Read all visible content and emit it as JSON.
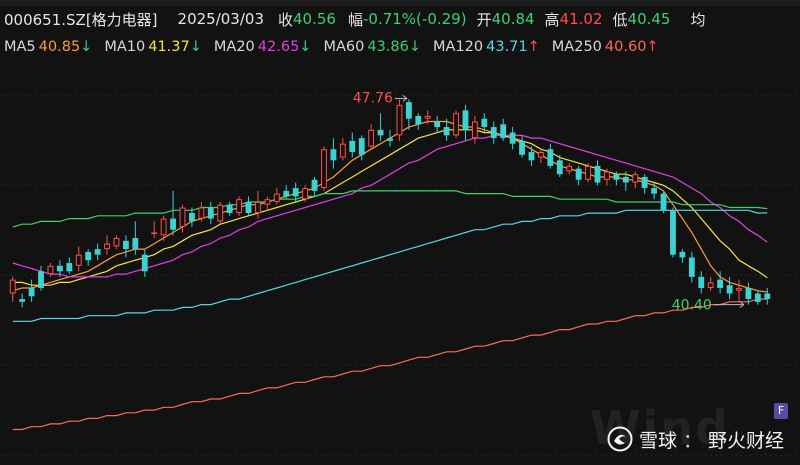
{
  "header": {
    "code": "000651.SZ[格力电器]",
    "date": "2025/03/03",
    "close_label": "收",
    "close_value": "40.56",
    "change_label": "幅",
    "change_value": "-0.71%(-0.29)",
    "open_label": "开",
    "open_value": "40.84",
    "high_label": "高",
    "high_value": "41.02",
    "low_label": "低",
    "low_value": "40.45",
    "avg_label": "均"
  },
  "ma_legend": [
    {
      "label": "MA5",
      "value": "40.85",
      "arrow": "↓",
      "color": "#ff9a3c"
    },
    {
      "label": "MA10",
      "value": "41.37",
      "arrow": "↓",
      "color": "#f5e14a"
    },
    {
      "label": "MA20",
      "value": "42.65",
      "arrow": "↓",
      "color": "#e040e0"
    },
    {
      "label": "MA60",
      "value": "43.86",
      "arrow": "↓",
      "color": "#3fd06d"
    },
    {
      "label": "MA120",
      "value": "43.71",
      "arrow": "↑",
      "color": "#5ad7e6"
    },
    {
      "label": "MA250",
      "value": "40.60",
      "arrow": "↑",
      "color": "#ff6a5a"
    }
  ],
  "colors": {
    "up": "#ff4d4d",
    "down": "#3fd0d0",
    "grid": "#262626"
  },
  "chart_data": {
    "type": "candlestick",
    "ylim": [
      34.8,
      49.0
    ],
    "annotations": [
      {
        "label": "47.76",
        "index": 42,
        "value": 47.76,
        "kind": "high",
        "color": "#ff4d4d"
      },
      {
        "label": "40.40",
        "index": 79,
        "value": 40.4,
        "kind": "low",
        "color": "#3fd06d"
      }
    ],
    "candles": [
      [
        40.8,
        41.3,
        40.5,
        41.4
      ],
      [
        40.6,
        40.5,
        40.3,
        40.8
      ],
      [
        41.0,
        40.7,
        40.5,
        41.3
      ],
      [
        41.6,
        41.0,
        40.9,
        41.8
      ],
      [
        41.5,
        41.8,
        41.4,
        41.9
      ],
      [
        41.8,
        41.6,
        41.4,
        42.0
      ],
      [
        41.9,
        41.6,
        41.5,
        42.1
      ],
      [
        41.8,
        42.2,
        41.6,
        42.5
      ],
      [
        42.3,
        42.0,
        41.8,
        42.4
      ],
      [
        42.4,
        42.2,
        42.0,
        42.6
      ],
      [
        42.4,
        42.6,
        42.2,
        42.9
      ],
      [
        42.5,
        42.8,
        42.4,
        42.9
      ],
      [
        42.7,
        42.4,
        42.1,
        42.9
      ],
      [
        42.8,
        42.4,
        42.2,
        43.4
      ],
      [
        42.2,
        41.6,
        41.4,
        42.4
      ],
      [
        43.0,
        43.0,
        42.8,
        43.4
      ],
      [
        42.9,
        43.5,
        42.7,
        43.6
      ],
      [
        43.5,
        43.1,
        42.9,
        44.5
      ],
      [
        43.2,
        43.9,
        43.0,
        44.0
      ],
      [
        43.7,
        43.4,
        43.2,
        43.9
      ],
      [
        43.5,
        43.9,
        43.4,
        44.1
      ],
      [
        43.9,
        43.5,
        43.3,
        44.1
      ],
      [
        43.4,
        44.0,
        43.3,
        44.1
      ],
      [
        44.0,
        43.7,
        43.6,
        44.1
      ],
      [
        43.7,
        44.2,
        43.6,
        44.3
      ],
      [
        44.1,
        43.7,
        43.6,
        44.3
      ],
      [
        43.7,
        44.1,
        43.5,
        44.5
      ],
      [
        44.0,
        44.2,
        43.8,
        44.3
      ],
      [
        44.1,
        44.4,
        44.0,
        44.6
      ],
      [
        44.5,
        44.3,
        44.2,
        44.7
      ],
      [
        44.6,
        44.3,
        44.1,
        44.8
      ],
      [
        44.2,
        44.6,
        44.1,
        44.7
      ],
      [
        44.9,
        44.5,
        44.3,
        45.0
      ],
      [
        44.6,
        46.0,
        44.5,
        46.1
      ],
      [
        46.0,
        45.6,
        45.3,
        46.4
      ],
      [
        45.7,
        46.2,
        45.6,
        46.4
      ],
      [
        46.3,
        45.9,
        45.7,
        46.6
      ],
      [
        46.4,
        45.8,
        45.6,
        46.5
      ],
      [
        46.1,
        46.7,
        46.0,
        46.9
      ],
      [
        46.7,
        46.5,
        46.3,
        47.3
      ],
      [
        46.4,
        46.3,
        46.1,
        46.7
      ],
      [
        46.5,
        47.6,
        46.3,
        47.8
      ],
      [
        47.7,
        47.1,
        46.7,
        47.8
      ],
      [
        47.2,
        46.9,
        46.7,
        47.3
      ],
      [
        47.1,
        47.2,
        46.9,
        47.4
      ],
      [
        47.0,
        46.8,
        46.6,
        47.2
      ],
      [
        46.8,
        46.5,
        46.3,
        47.1
      ],
      [
        46.5,
        47.3,
        46.4,
        47.4
      ],
      [
        47.4,
        46.7,
        46.3,
        47.6
      ],
      [
        46.4,
        47.0,
        46.2,
        47.2
      ],
      [
        47.1,
        46.8,
        46.6,
        47.3
      ],
      [
        46.8,
        46.4,
        46.2,
        47.0
      ],
      [
        46.9,
        46.4,
        46.3,
        47.1
      ],
      [
        46.6,
        46.2,
        46.0,
        46.8
      ],
      [
        46.3,
        45.8,
        45.7,
        46.5
      ],
      [
        45.9,
        45.6,
        45.4,
        46.1
      ],
      [
        45.7,
        45.9,
        45.5,
        46.0
      ],
      [
        46.0,
        45.4,
        45.3,
        46.2
      ],
      [
        45.6,
        45.1,
        45.0,
        45.8
      ],
      [
        45.2,
        45.4,
        45.1,
        45.5
      ],
      [
        45.3,
        44.9,
        44.7,
        45.4
      ],
      [
        44.9,
        45.4,
        44.8,
        45.5
      ],
      [
        45.4,
        44.8,
        44.7,
        45.6
      ],
      [
        44.9,
        45.2,
        44.7,
        45.3
      ],
      [
        45.1,
        44.9,
        44.7,
        45.2
      ],
      [
        45.0,
        44.8,
        44.5,
        45.2
      ],
      [
        44.8,
        45.1,
        44.6,
        45.2
      ],
      [
        45.0,
        44.6,
        44.4,
        45.1
      ],
      [
        44.6,
        44.4,
        44.2,
        44.8
      ],
      [
        44.4,
        43.8,
        43.7,
        44.5
      ],
      [
        43.8,
        42.2,
        42.1,
        43.9
      ],
      [
        42.3,
        42.1,
        41.9,
        42.4
      ],
      [
        42.1,
        41.4,
        41.2,
        42.3
      ],
      [
        41.4,
        41.0,
        40.8,
        41.6
      ],
      [
        41.0,
        41.2,
        40.9,
        41.4
      ],
      [
        41.3,
        41.0,
        40.8,
        41.6
      ],
      [
        41.1,
        40.8,
        40.6,
        41.4
      ],
      [
        40.9,
        41.0,
        40.5,
        41.3
      ],
      [
        41.0,
        40.6,
        40.4,
        41.2
      ],
      [
        40.8,
        40.5,
        40.4,
        40.9
      ],
      [
        40.8,
        40.6,
        40.4,
        41.0
      ]
    ],
    "ma_lines": {
      "MA5": [
        40.9,
        41.0,
        41.0,
        41.1,
        41.2,
        41.3,
        41.4,
        41.5,
        41.6,
        41.8,
        42.0,
        42.2,
        42.3,
        42.4,
        42.4,
        42.6,
        42.8,
        43.0,
        43.2,
        43.4,
        43.5,
        43.6,
        43.7,
        43.8,
        43.9,
        44.0,
        44.0,
        44.1,
        44.2,
        44.3,
        44.4,
        44.5,
        44.6,
        44.8,
        45.0,
        45.3,
        45.6,
        45.8,
        46.0,
        46.2,
        46.4,
        46.6,
        46.8,
        46.9,
        47.0,
        47.0,
        47.0,
        46.9,
        46.8,
        46.8,
        46.7,
        46.6,
        46.5,
        46.4,
        46.2,
        46.0,
        45.8,
        45.6,
        45.4,
        45.3,
        45.2,
        45.1,
        45.0,
        45.0,
        45.0,
        44.9,
        44.9,
        44.8,
        44.7,
        44.5,
        44.0,
        43.5,
        43.0,
        42.4,
        41.8,
        41.4,
        41.2,
        41.1,
        41.0,
        40.9,
        40.85
      ],
      "MA10": [
        41.2,
        41.2,
        41.1,
        41.1,
        41.1,
        41.2,
        41.2,
        41.3,
        41.4,
        41.5,
        41.6,
        41.8,
        41.9,
        42.0,
        42.1,
        42.2,
        42.4,
        42.5,
        42.7,
        42.9,
        43.0,
        43.1,
        43.3,
        43.4,
        43.5,
        43.6,
        43.7,
        43.8,
        43.9,
        44.0,
        44.1,
        44.2,
        44.3,
        44.4,
        44.6,
        44.8,
        45.0,
        45.2,
        45.4,
        45.6,
        45.8,
        46.0,
        46.2,
        46.4,
        46.5,
        46.6,
        46.7,
        46.7,
        46.7,
        46.7,
        46.6,
        46.6,
        46.5,
        46.4,
        46.3,
        46.2,
        46.0,
        45.9,
        45.7,
        45.6,
        45.5,
        45.4,
        45.3,
        45.2,
        45.1,
        45.1,
        45.0,
        44.9,
        44.8,
        44.7,
        44.5,
        44.2,
        43.9,
        43.5,
        43.1,
        42.7,
        42.4,
        42.0,
        41.8,
        41.6,
        41.37
      ],
      "MA20": [
        41.9,
        41.8,
        41.7,
        41.6,
        41.5,
        41.5,
        41.4,
        41.4,
        41.4,
        41.4,
        41.4,
        41.5,
        41.5,
        41.6,
        41.7,
        41.8,
        41.9,
        42.0,
        42.2,
        42.3,
        42.5,
        42.6,
        42.8,
        42.9,
        43.1,
        43.2,
        43.4,
        43.5,
        43.6,
        43.7,
        43.8,
        43.9,
        44.0,
        44.1,
        44.2,
        44.3,
        44.4,
        44.6,
        44.7,
        44.9,
        45.1,
        45.3,
        45.5,
        45.6,
        45.8,
        46.0,
        46.1,
        46.2,
        46.3,
        46.4,
        46.4,
        46.5,
        46.5,
        46.5,
        46.5,
        46.4,
        46.4,
        46.3,
        46.2,
        46.1,
        46.0,
        45.9,
        45.8,
        45.7,
        45.6,
        45.5,
        45.4,
        45.3,
        45.2,
        45.1,
        45.0,
        44.8,
        44.6,
        44.4,
        44.1,
        43.9,
        43.6,
        43.4,
        43.1,
        42.9,
        42.65
      ],
      "MA60": [
        43.2,
        43.3,
        43.3,
        43.4,
        43.4,
        43.4,
        43.5,
        43.5,
        43.5,
        43.6,
        43.6,
        43.6,
        43.6,
        43.7,
        43.7,
        43.7,
        43.7,
        43.8,
        43.8,
        43.8,
        43.9,
        43.9,
        43.9,
        44.0,
        44.0,
        44.1,
        44.1,
        44.1,
        44.2,
        44.2,
        44.2,
        44.3,
        44.3,
        44.4,
        44.4,
        44.4,
        44.5,
        44.5,
        44.5,
        44.5,
        44.5,
        44.5,
        44.5,
        44.5,
        44.5,
        44.5,
        44.5,
        44.5,
        44.4,
        44.4,
        44.4,
        44.4,
        44.4,
        44.3,
        44.3,
        44.3,
        44.3,
        44.3,
        44.2,
        44.2,
        44.2,
        44.2,
        44.2,
        44.2,
        44.1,
        44.1,
        44.1,
        44.1,
        44.1,
        44.1,
        44.1,
        44.0,
        44.0,
        44.0,
        44.0,
        44.0,
        43.9,
        43.9,
        43.9,
        43.9,
        43.86
      ],
      "MA120": [
        39.8,
        39.8,
        39.8,
        39.9,
        39.9,
        39.9,
        39.9,
        39.9,
        40.0,
        40.0,
        40.0,
        40.0,
        40.1,
        40.1,
        40.1,
        40.2,
        40.2,
        40.2,
        40.3,
        40.3,
        40.4,
        40.4,
        40.5,
        40.6,
        40.6,
        40.7,
        40.8,
        40.9,
        41.0,
        41.1,
        41.2,
        41.3,
        41.4,
        41.5,
        41.6,
        41.7,
        41.8,
        41.9,
        42.0,
        42.1,
        42.2,
        42.3,
        42.4,
        42.5,
        42.6,
        42.7,
        42.8,
        42.9,
        43.0,
        43.1,
        43.1,
        43.2,
        43.3,
        43.3,
        43.4,
        43.4,
        43.5,
        43.5,
        43.6,
        43.6,
        43.6,
        43.7,
        43.7,
        43.7,
        43.7,
        43.8,
        43.8,
        43.8,
        43.8,
        43.8,
        43.8,
        43.8,
        43.8,
        43.8,
        43.8,
        43.8,
        43.8,
        43.8,
        43.8,
        43.7,
        43.71
      ],
      "MA250": [
        35.9,
        35.9,
        36.0,
        36.0,
        36.1,
        36.1,
        36.2,
        36.2,
        36.3,
        36.3,
        36.4,
        36.4,
        36.5,
        36.5,
        36.6,
        36.6,
        36.7,
        36.7,
        36.8,
        36.9,
        36.9,
        37.0,
        37.0,
        37.1,
        37.2,
        37.2,
        37.3,
        37.4,
        37.4,
        37.5,
        37.6,
        37.6,
        37.7,
        37.8,
        37.8,
        37.9,
        38.0,
        38.0,
        38.1,
        38.2,
        38.2,
        38.3,
        38.4,
        38.5,
        38.5,
        38.6,
        38.7,
        38.7,
        38.8,
        38.9,
        38.9,
        39.0,
        39.1,
        39.1,
        39.2,
        39.3,
        39.3,
        39.4,
        39.5,
        39.5,
        39.6,
        39.7,
        39.7,
        39.8,
        39.8,
        39.9,
        40.0,
        40.0,
        40.1,
        40.1,
        40.2,
        40.2,
        40.3,
        40.3,
        40.4,
        40.4,
        40.5,
        40.5,
        40.5,
        40.6,
        40.6
      ]
    }
  },
  "watermark": {
    "brand": "雪球",
    "separator": "：",
    "author": "野火财经",
    "bg_mark": "Wind",
    "corner_label": "F"
  }
}
